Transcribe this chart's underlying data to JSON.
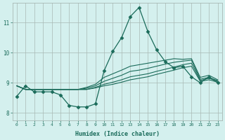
{
  "xlabel": "Humidex (Indice chaleur)",
  "background_color": "#d4f0ee",
  "grid_color": "#a8b8b4",
  "line_color": "#1a6b5a",
  "tick_color": "#1a6b5a",
  "xlim": [
    -0.5,
    23.5
  ],
  "ylim": [
    7.75,
    11.65
  ],
  "xticks": [
    0,
    1,
    2,
    3,
    4,
    5,
    6,
    7,
    8,
    9,
    10,
    11,
    12,
    13,
    14,
    15,
    16,
    17,
    18,
    19,
    20,
    21,
    22,
    23
  ],
  "yticks": [
    8,
    9,
    10,
    11
  ],
  "lines": [
    {
      "x": [
        0,
        1,
        2,
        3,
        4,
        5,
        6,
        7,
        8,
        9,
        10,
        11,
        12,
        13,
        14,
        15,
        16,
        17,
        18,
        19,
        20,
        21,
        22,
        23
      ],
      "y": [
        8.55,
        8.9,
        8.7,
        8.7,
        8.7,
        8.6,
        8.25,
        8.2,
        8.2,
        8.3,
        9.4,
        10.05,
        10.5,
        11.2,
        11.5,
        10.7,
        10.1,
        9.7,
        9.5,
        9.55,
        9.2,
        9.0,
        9.2,
        9.0
      ],
      "marker": "D",
      "markersize": 2.5,
      "lw": 0.9
    },
    {
      "x": [
        0,
        1,
        2,
        3,
        4,
        5,
        6,
        7,
        8,
        9,
        10,
        11,
        12,
        13,
        14,
        15,
        16,
        17,
        18,
        19,
        20,
        21,
        22,
        23
      ],
      "y": [
        8.9,
        8.78,
        8.78,
        8.78,
        8.78,
        8.78,
        8.78,
        8.78,
        8.78,
        8.83,
        8.9,
        8.95,
        9.02,
        9.1,
        9.15,
        9.2,
        9.28,
        9.35,
        9.42,
        9.5,
        9.55,
        9.05,
        9.1,
        9.02
      ],
      "marker": null,
      "markersize": 0,
      "lw": 0.8
    },
    {
      "x": [
        0,
        1,
        2,
        3,
        4,
        5,
        6,
        7,
        8,
        9,
        10,
        11,
        12,
        13,
        14,
        15,
        16,
        17,
        18,
        19,
        20,
        21,
        22,
        23
      ],
      "y": [
        8.9,
        8.78,
        8.78,
        8.78,
        8.78,
        8.78,
        8.78,
        8.78,
        8.78,
        8.85,
        8.95,
        9.02,
        9.1,
        9.2,
        9.25,
        9.3,
        9.38,
        9.45,
        9.52,
        9.6,
        9.65,
        9.08,
        9.15,
        9.05
      ],
      "marker": null,
      "markersize": 0,
      "lw": 0.8
    },
    {
      "x": [
        0,
        1,
        2,
        3,
        4,
        5,
        6,
        7,
        8,
        9,
        10,
        11,
        12,
        13,
        14,
        15,
        16,
        17,
        18,
        19,
        20,
        21,
        22,
        23
      ],
      "y": [
        8.9,
        8.78,
        8.78,
        8.78,
        8.78,
        8.78,
        8.78,
        8.78,
        8.82,
        8.9,
        9.05,
        9.15,
        9.25,
        9.38,
        9.42,
        9.48,
        9.55,
        9.62,
        9.68,
        9.72,
        9.75,
        9.12,
        9.18,
        9.07
      ],
      "marker": null,
      "markersize": 0,
      "lw": 0.8
    },
    {
      "x": [
        0,
        1,
        2,
        3,
        4,
        5,
        6,
        7,
        8,
        9,
        10,
        11,
        12,
        13,
        14,
        15,
        16,
        17,
        18,
        19,
        20,
        21,
        22,
        23
      ],
      "y": [
        8.9,
        8.78,
        8.78,
        8.78,
        8.78,
        8.78,
        8.78,
        8.78,
        8.85,
        8.95,
        9.18,
        9.3,
        9.42,
        9.55,
        9.6,
        9.65,
        9.7,
        9.75,
        9.8,
        9.78,
        9.8,
        9.18,
        9.25,
        9.1
      ],
      "marker": null,
      "markersize": 0,
      "lw": 0.8
    }
  ]
}
